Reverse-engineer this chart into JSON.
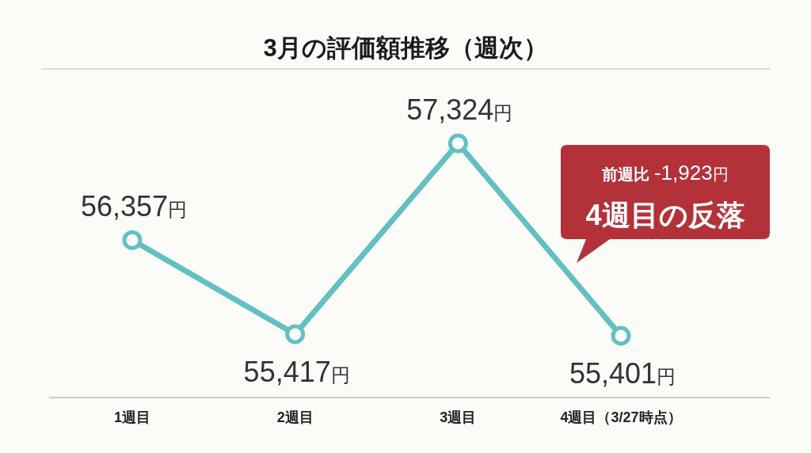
{
  "chart_data": {
    "type": "line",
    "title": "3月の評価額推移（週次）",
    "categories": [
      "1週目",
      "2週目",
      "3週目",
      "4週目（3/27時点）"
    ],
    "series": [
      {
        "color": "#62c0c3",
        "values": [
          56357,
          55417,
          57324,
          55401
        ],
        "value_labels": [
          "56,357円",
          "55,417円",
          "57,324円",
          "55,401円"
        ]
      }
    ],
    "marker": "circle",
    "line_style": "solid",
    "grid": false,
    "annotations": [
      "前週比 -1,923円",
      "4週目の反落"
    ]
  }
}
